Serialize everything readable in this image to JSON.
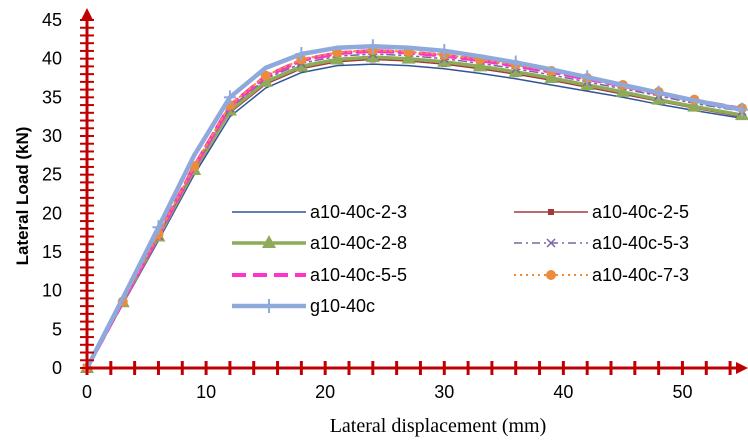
{
  "chart_data": {
    "type": "line",
    "title": "",
    "xlabel": "Lateral displacement (mm)",
    "ylabel": "Lateral Load (kN)",
    "xlim": [
      0,
      55
    ],
    "ylim": [
      0,
      45
    ],
    "xticks": [
      0,
      10,
      20,
      30,
      40,
      50
    ],
    "yticks": [
      0,
      5,
      10,
      15,
      20,
      25,
      30,
      35,
      40,
      45
    ],
    "grid": false,
    "axis_color": "#c00000",
    "legend_position": "center-right",
    "series": [
      {
        "name": "a10-40c-2-3",
        "color": "#2f5597",
        "dash": "solid",
        "marker": "none",
        "width": 1.5,
        "x": [
          0,
          3,
          6,
          9,
          12,
          15,
          18,
          21,
          24,
          27,
          30,
          33,
          36,
          39,
          42,
          45,
          48,
          51,
          55
        ],
        "y": [
          0,
          8.2,
          16.5,
          25,
          32.5,
          36.2,
          38.2,
          39.1,
          39.3,
          39.1,
          38.7,
          38.1,
          37.4,
          36.6,
          35.8,
          35.0,
          34.1,
          33.3,
          32.3
        ]
      },
      {
        "name": "a10-40c-2-5",
        "color": "#a33a3a",
        "dash": "solid",
        "marker": "square",
        "width": 1.5,
        "x": [
          0,
          3,
          6,
          9,
          12,
          15,
          18,
          21,
          24,
          27,
          30,
          33,
          36,
          39,
          42,
          45,
          48,
          51,
          55
        ],
        "y": [
          0,
          8.4,
          16.9,
          25.4,
          33.0,
          36.7,
          38.7,
          39.6,
          39.9,
          39.7,
          39.3,
          38.7,
          38.0,
          37.2,
          36.3,
          35.4,
          34.5,
          33.6,
          32.5
        ]
      },
      {
        "name": "a10-40c-2-8",
        "color": "#8faa58",
        "dash": "solid",
        "marker": "triangle",
        "width": 3.5,
        "x": [
          0,
          3,
          6,
          9,
          12,
          15,
          18,
          21,
          24,
          27,
          30,
          33,
          36,
          39,
          42,
          45,
          48,
          51,
          55
        ],
        "y": [
          0,
          8.5,
          17.0,
          25.6,
          33.3,
          37.0,
          39.0,
          39.9,
          40.2,
          40.0,
          39.6,
          39.0,
          38.3,
          37.5,
          36.6,
          35.7,
          34.7,
          33.8,
          32.7
        ]
      },
      {
        "name": "a10-40c-5-3",
        "color": "#7a66a0",
        "dash": "dashdot",
        "marker": "x",
        "width": 1.5,
        "x": [
          0,
          3,
          6,
          9,
          12,
          15,
          18,
          21,
          24,
          27,
          30,
          33,
          36,
          39,
          42,
          45,
          48,
          51,
          55
        ],
        "y": [
          0,
          8.5,
          17.1,
          25.8,
          33.6,
          37.4,
          39.4,
          40.3,
          40.6,
          40.4,
          40.0,
          39.4,
          38.7,
          37.9,
          37.0,
          36.1,
          35.2,
          34.2,
          33.2
        ]
      },
      {
        "name": "a10-40c-5-5",
        "color": "#ff33cc",
        "dash": "dashed",
        "marker": "none",
        "width": 4,
        "x": [
          0,
          3,
          6,
          9,
          12,
          15,
          18,
          21,
          24,
          27,
          30,
          33,
          36,
          39,
          42,
          45,
          48,
          51,
          55
        ],
        "y": [
          0,
          8.6,
          17.2,
          26.0,
          33.9,
          37.7,
          39.8,
          40.7,
          41.0,
          40.8,
          40.4,
          39.8,
          39.1,
          38.3,
          37.4,
          36.5,
          35.5,
          34.6,
          33.5
        ]
      },
      {
        "name": "a10-40c-7-3",
        "color": "#ed8b3a",
        "dash": "dotted",
        "marker": "circle",
        "width": 2,
        "x": [
          0,
          3,
          6,
          9,
          12,
          15,
          18,
          21,
          24,
          27,
          30,
          33,
          36,
          39,
          42,
          45,
          48,
          51,
          55
        ],
        "y": [
          0,
          8.6,
          17.3,
          26.1,
          34.0,
          37.8,
          39.9,
          40.8,
          41.1,
          40.9,
          40.5,
          39.9,
          39.2,
          38.4,
          37.5,
          36.6,
          35.7,
          34.7,
          33.6
        ]
      },
      {
        "name": "g10-40c",
        "color": "#8ea9db",
        "dash": "solid",
        "marker": "plus",
        "width": 4.5,
        "x": [
          0,
          3,
          6,
          9,
          12,
          15,
          18,
          21,
          24,
          27,
          30,
          33,
          36,
          39,
          42,
          45,
          48,
          51,
          55
        ],
        "y": [
          0,
          9.0,
          18.2,
          27.5,
          35.0,
          38.8,
          40.6,
          41.4,
          41.6,
          41.4,
          41.0,
          40.3,
          39.5,
          38.6,
          37.6,
          36.6,
          35.6,
          34.6,
          33.4
        ]
      }
    ]
  }
}
